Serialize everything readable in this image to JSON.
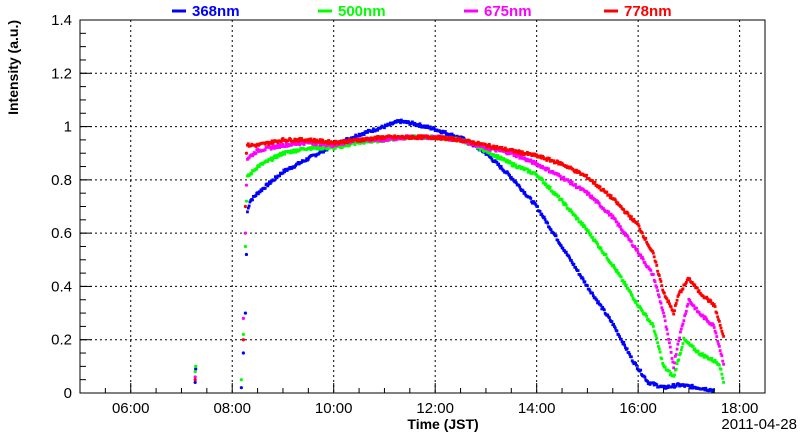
{
  "chart_data": {
    "type": "scatter",
    "title": "",
    "xlabel": "Time (JST)",
    "ylabel": "Intensity (a.u.)",
    "date_label": "2011-04-28",
    "xlim": [
      5.0,
      18.5
    ],
    "ylim": [
      0,
      1.4
    ],
    "grid": true,
    "legend_position": "top",
    "x_ticks": [
      {
        "value": 6,
        "label": "06:00"
      },
      {
        "value": 8,
        "label": "08:00"
      },
      {
        "value": 10,
        "label": "10:00"
      },
      {
        "value": 12,
        "label": "12:00"
      },
      {
        "value": 14,
        "label": "14:00"
      },
      {
        "value": 16,
        "label": "16:00"
      },
      {
        "value": 18,
        "label": "18:00"
      }
    ],
    "y_ticks": [
      {
        "value": 0,
        "label": "0"
      },
      {
        "value": 0.2,
        "label": "0.2"
      },
      {
        "value": 0.4,
        "label": "0.4"
      },
      {
        "value": 0.6,
        "label": "0.6"
      },
      {
        "value": 0.8,
        "label": "0.8"
      },
      {
        "value": 1.0,
        "label": "1"
      },
      {
        "value": 1.2,
        "label": "1.2"
      },
      {
        "value": 1.4,
        "label": "1.4"
      }
    ],
    "series": [
      {
        "name": "368nm",
        "color": "#0000ff",
        "points": [
          [
            7.27,
            0.04
          ],
          [
            7.28,
            0.09
          ],
          [
            8.18,
            0.02
          ],
          [
            8.22,
            0.15
          ],
          [
            8.26,
            0.3
          ],
          [
            8.28,
            0.52
          ],
          [
            8.3,
            0.68
          ],
          [
            8.35,
            0.72
          ],
          [
            8.5,
            0.75
          ],
          [
            9.0,
            0.83
          ],
          [
            9.5,
            0.88
          ],
          [
            10.0,
            0.93
          ],
          [
            10.5,
            0.97
          ],
          [
            11.0,
            1.0
          ],
          [
            11.3,
            1.02
          ],
          [
            11.6,
            1.01
          ],
          [
            12.0,
            0.99
          ],
          [
            12.3,
            0.97
          ],
          [
            12.6,
            0.95
          ],
          [
            13.0,
            0.9
          ],
          [
            13.5,
            0.81
          ],
          [
            14.0,
            0.7
          ],
          [
            14.5,
            0.55
          ],
          [
            15.0,
            0.4
          ],
          [
            15.5,
            0.26
          ],
          [
            15.9,
            0.12
          ],
          [
            16.2,
            0.04
          ],
          [
            16.5,
            0.02
          ],
          [
            16.8,
            0.03
          ],
          [
            17.2,
            0.02
          ],
          [
            17.5,
            0.01
          ]
        ]
      },
      {
        "name": "500nm",
        "color": "#00ff00",
        "points": [
          [
            7.27,
            0.08
          ],
          [
            7.28,
            0.1
          ],
          [
            8.18,
            0.05
          ],
          [
            8.22,
            0.22
          ],
          [
            8.26,
            0.55
          ],
          [
            8.28,
            0.72
          ],
          [
            8.3,
            0.81
          ],
          [
            8.5,
            0.85
          ],
          [
            9.0,
            0.9
          ],
          [
            9.5,
            0.92
          ],
          [
            10.0,
            0.92
          ],
          [
            10.5,
            0.94
          ],
          [
            11.0,
            0.95
          ],
          [
            11.5,
            0.96
          ],
          [
            12.0,
            0.96
          ],
          [
            12.5,
            0.95
          ],
          [
            13.0,
            0.91
          ],
          [
            13.5,
            0.86
          ],
          [
            14.0,
            0.82
          ],
          [
            14.5,
            0.72
          ],
          [
            15.0,
            0.61
          ],
          [
            15.5,
            0.48
          ],
          [
            16.0,
            0.33
          ],
          [
            16.3,
            0.25
          ],
          [
            16.5,
            0.1
          ],
          [
            16.7,
            0.06
          ],
          [
            16.9,
            0.2
          ],
          [
            17.2,
            0.15
          ],
          [
            17.6,
            0.11
          ],
          [
            17.7,
            0.03
          ]
        ]
      },
      {
        "name": "675nm",
        "color": "#ff00ff",
        "points": [
          [
            7.27,
            0.06
          ],
          [
            8.22,
            0.28
          ],
          [
            8.26,
            0.6
          ],
          [
            8.28,
            0.78
          ],
          [
            8.3,
            0.88
          ],
          [
            8.5,
            0.91
          ],
          [
            9.0,
            0.93
          ],
          [
            9.5,
            0.94
          ],
          [
            10.0,
            0.93
          ],
          [
            10.5,
            0.95
          ],
          [
            11.0,
            0.95
          ],
          [
            11.5,
            0.96
          ],
          [
            12.0,
            0.96
          ],
          [
            12.5,
            0.95
          ],
          [
            13.0,
            0.92
          ],
          [
            13.5,
            0.9
          ],
          [
            14.0,
            0.86
          ],
          [
            14.5,
            0.81
          ],
          [
            15.0,
            0.75
          ],
          [
            15.5,
            0.66
          ],
          [
            16.0,
            0.53
          ],
          [
            16.3,
            0.44
          ],
          [
            16.5,
            0.3
          ],
          [
            16.7,
            0.1
          ],
          [
            16.8,
            0.2
          ],
          [
            17.0,
            0.35
          ],
          [
            17.2,
            0.3
          ],
          [
            17.5,
            0.25
          ],
          [
            17.7,
            0.1
          ]
        ]
      },
      {
        "name": "778nm",
        "color": "#ff0000",
        "points": [
          [
            7.27,
            0.05
          ],
          [
            8.22,
            0.2
          ],
          [
            8.26,
            0.7
          ],
          [
            8.28,
            0.9
          ],
          [
            8.3,
            0.93
          ],
          [
            8.5,
            0.93
          ],
          [
            9.0,
            0.95
          ],
          [
            9.5,
            0.95
          ],
          [
            10.0,
            0.94
          ],
          [
            10.5,
            0.95
          ],
          [
            11.0,
            0.96
          ],
          [
            11.5,
            0.96
          ],
          [
            12.0,
            0.96
          ],
          [
            12.5,
            0.95
          ],
          [
            13.0,
            0.93
          ],
          [
            13.5,
            0.91
          ],
          [
            14.0,
            0.89
          ],
          [
            14.5,
            0.86
          ],
          [
            15.0,
            0.81
          ],
          [
            15.5,
            0.73
          ],
          [
            16.0,
            0.63
          ],
          [
            16.3,
            0.52
          ],
          [
            16.5,
            0.38
          ],
          [
            16.7,
            0.3
          ],
          [
            16.8,
            0.37
          ],
          [
            17.0,
            0.43
          ],
          [
            17.2,
            0.38
          ],
          [
            17.5,
            0.33
          ],
          [
            17.7,
            0.2
          ]
        ]
      }
    ]
  }
}
